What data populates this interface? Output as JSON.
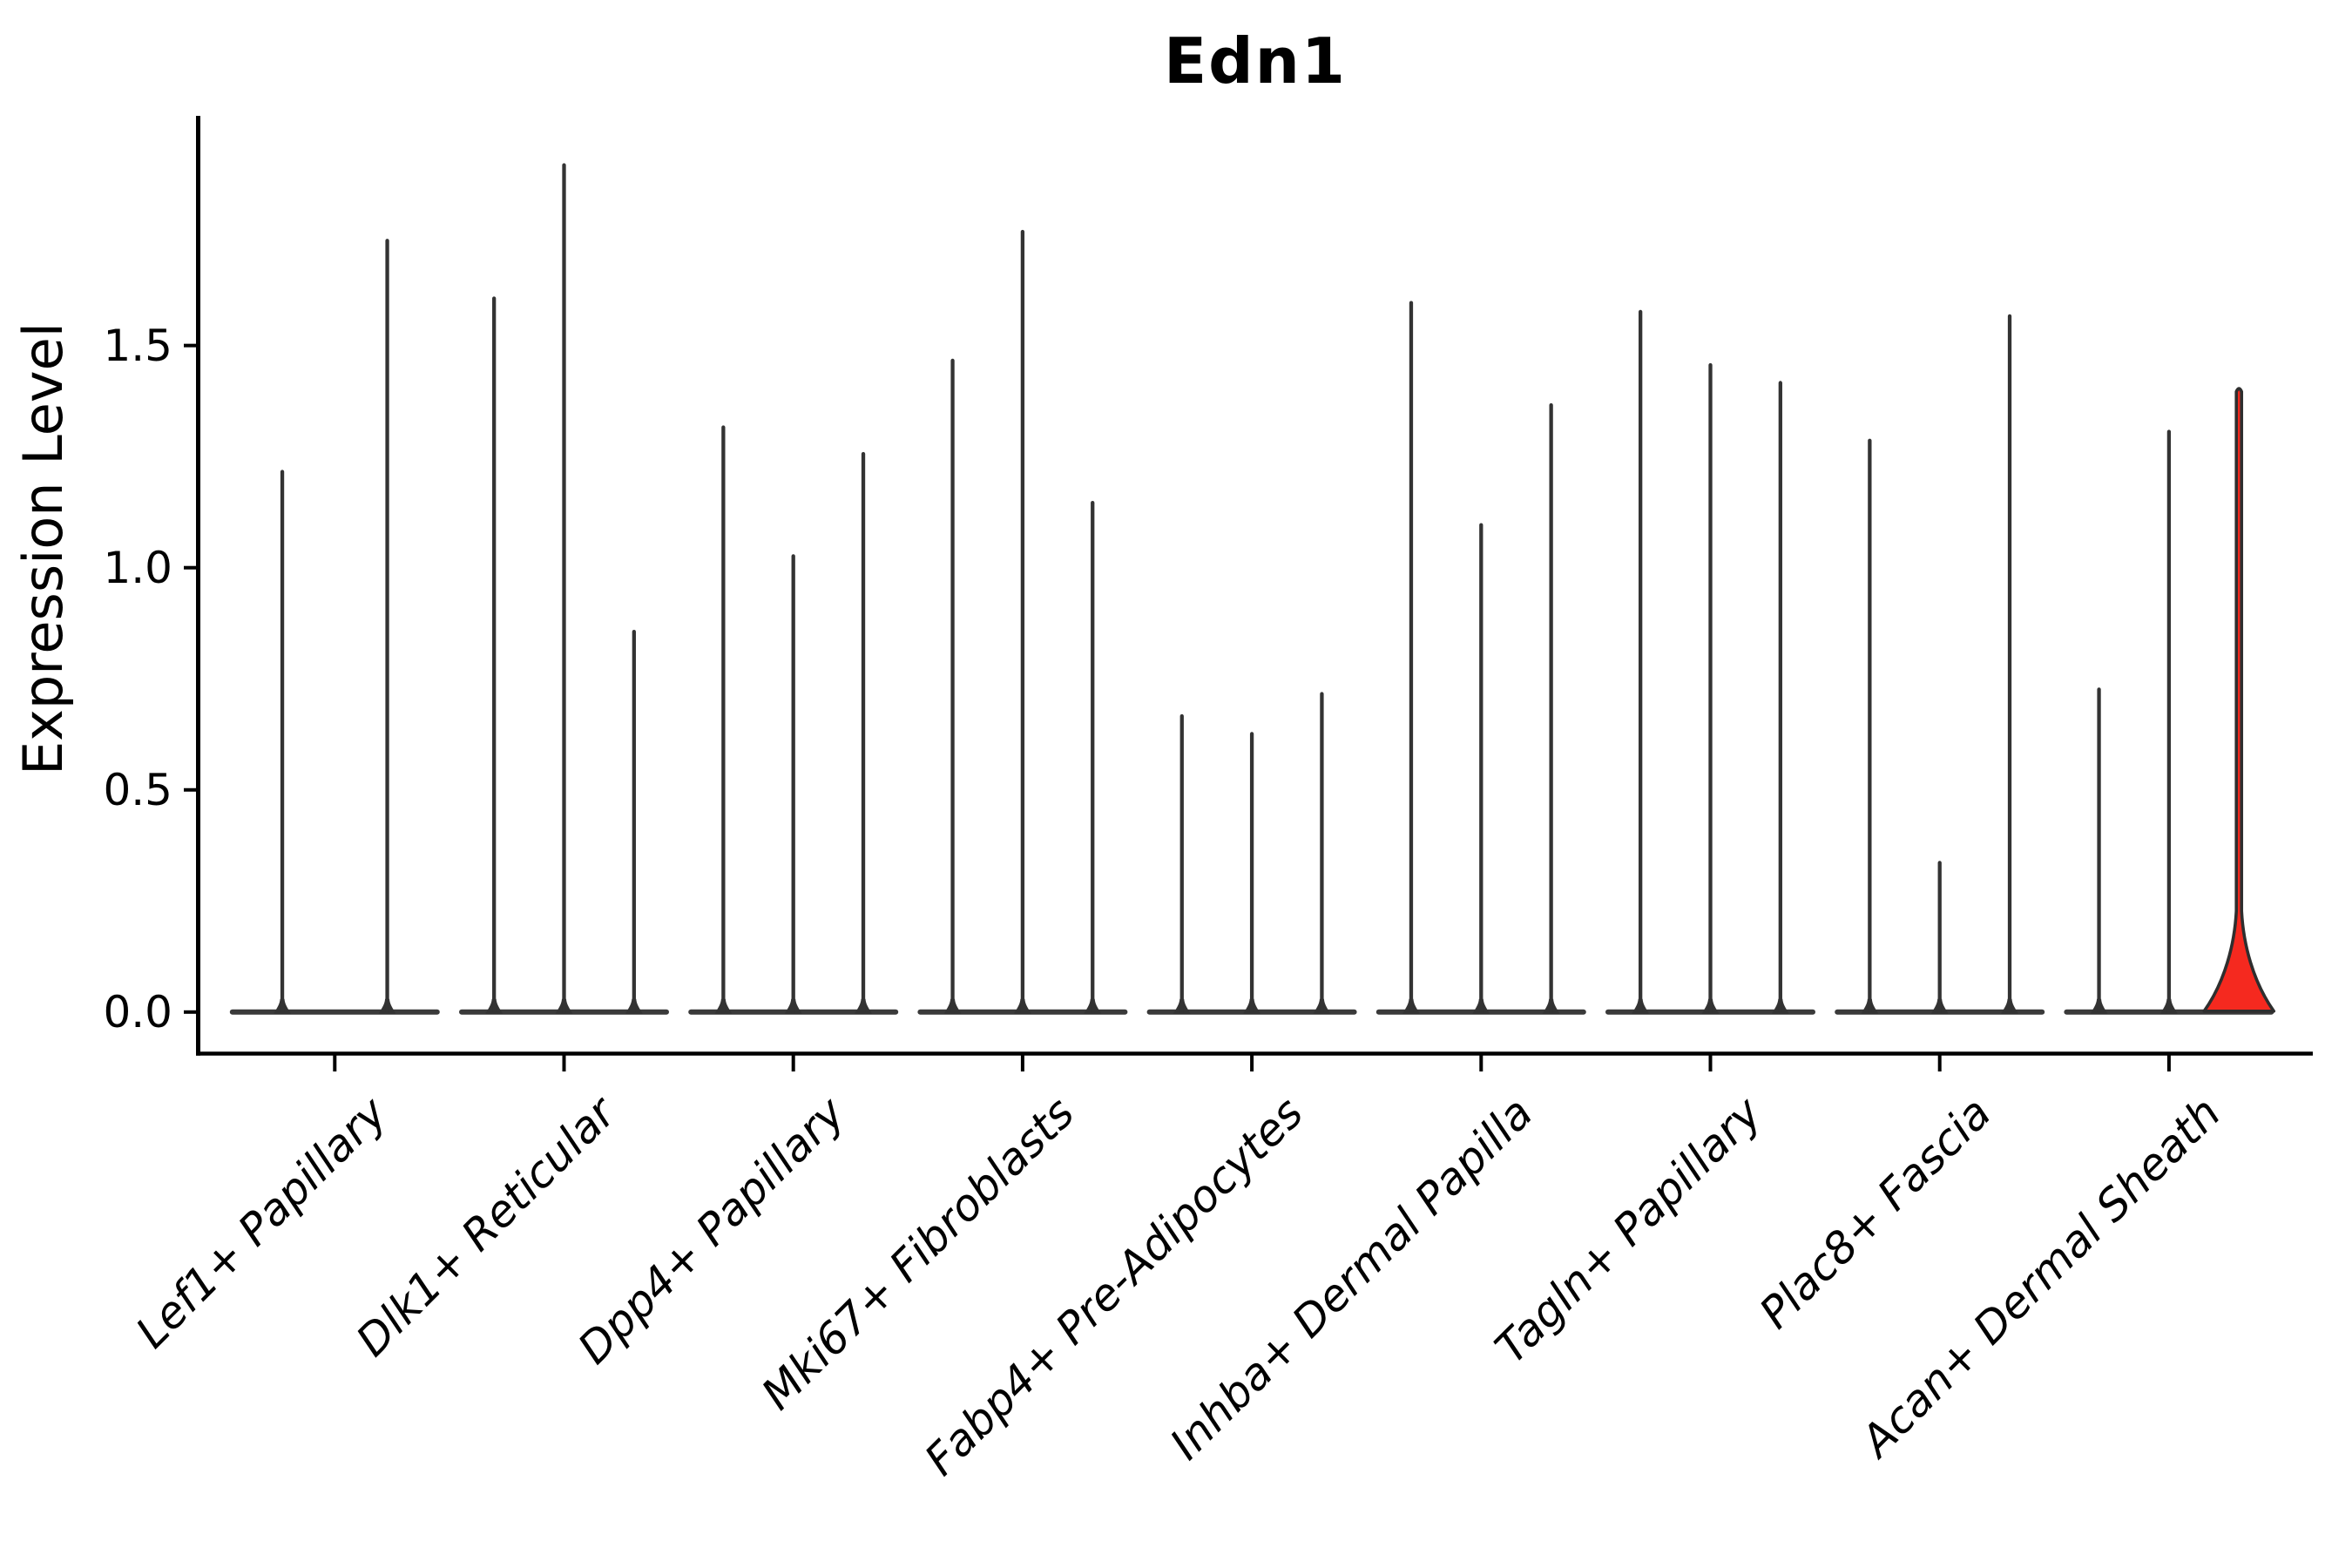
{
  "figure": {
    "title": "Edn1",
    "y_axis_label": "Expression Level"
  },
  "chart_data": {
    "type": "violin",
    "title": "Edn1",
    "xlabel": "",
    "ylabel": "Expression Level",
    "ylim": [
      -0.09,
      2.01
    ],
    "yticks": [
      0.0,
      0.5,
      1.0,
      1.5
    ],
    "ytick_labels": [
      "0.0",
      "0.5",
      "1.0",
      "1.5"
    ],
    "grid": false,
    "legend": "none",
    "categories": [
      "Lef1+ Papillary",
      "Dlk1+ Reticular",
      "Dpp4+ Papillary",
      "Mki67+ Fibroblasts",
      "Fabp4+ Pre-Adipocytes",
      "Inhba+ Dermal Papilla",
      "Tagln+ Papillary",
      "Plac8+ Fascia",
      "Acan+ Dermal Sheath"
    ],
    "series": [
      {
        "category": "Lef1+ Papillary",
        "violins": [
          {
            "max": 1.22
          },
          {
            "max": 1.74
          }
        ]
      },
      {
        "category": "Dlk1+ Reticular",
        "violins": [
          {
            "max": 1.61
          },
          {
            "max": 1.91
          },
          {
            "max": 0.86
          }
        ]
      },
      {
        "category": "Dpp4+ Papillary",
        "violins": [
          {
            "max": 1.32
          },
          {
            "max": 1.03
          },
          {
            "max": 1.26
          }
        ]
      },
      {
        "category": "Mki67+ Fibroblasts",
        "violins": [
          {
            "max": 1.47
          },
          {
            "max": 1.76
          },
          {
            "max": 1.15
          }
        ]
      },
      {
        "category": "Fabp4+ Pre-Adipocytes",
        "violins": [
          {
            "max": 0.67
          },
          {
            "max": 0.63
          },
          {
            "max": 0.72
          }
        ]
      },
      {
        "category": "Inhba+ Dermal Papilla",
        "violins": [
          {
            "max": 1.6
          },
          {
            "max": 1.1
          },
          {
            "max": 1.37
          }
        ]
      },
      {
        "category": "Tagln+ Papillary",
        "violins": [
          {
            "max": 1.58
          },
          {
            "max": 1.46
          },
          {
            "max": 1.42
          }
        ]
      },
      {
        "category": "Plac8+ Fascia",
        "violins": [
          {
            "max": 1.29
          },
          {
            "max": 0.34
          },
          {
            "max": 1.57
          }
        ]
      },
      {
        "category": "Acan+ Dermal Sheath",
        "violins": [
          {
            "max": 0.73
          },
          {
            "max": 1.31
          },
          {
            "max": 1.41,
            "highlighted": true,
            "base_bulge": true
          }
        ]
      }
    ],
    "violin_note": "All violins are collapsed at expression 0 (flat density bar) with a thin spike up to the max value; the highlighted violin is filled red and has a wide density bulge near 0."
  },
  "colors": {
    "background": "#ffffff",
    "axis": "#000000",
    "text": "#000000",
    "violin_stroke": "#333333",
    "violin_baseline": "#3a3a3a",
    "highlight_fill": "#f5291f",
    "highlight_stroke": "#2e2e2e"
  }
}
